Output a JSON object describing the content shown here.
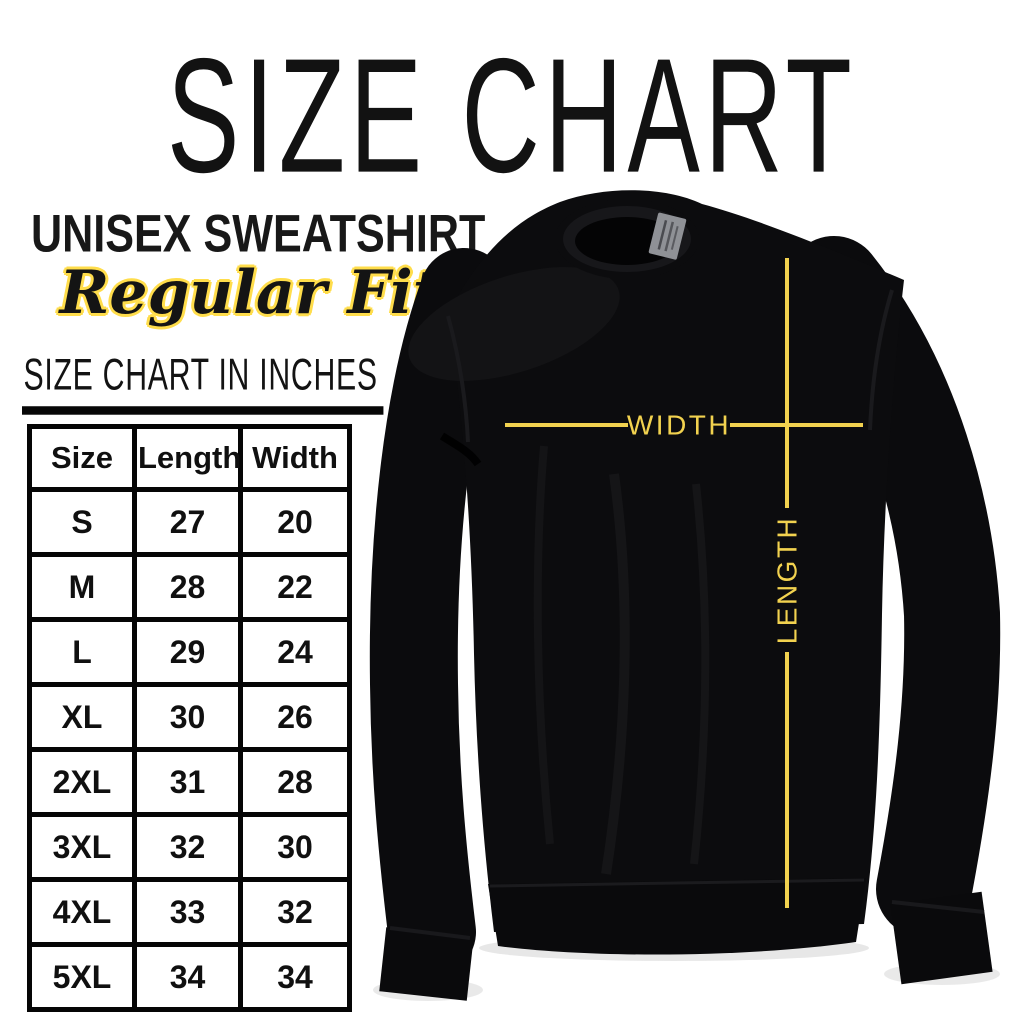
{
  "page": {
    "title": "SIZE CHART",
    "product_name": "UNISEX SWEATSHIRT",
    "fit": "Regular Fit",
    "table_heading": "SIZE CHART IN INCHES"
  },
  "chart_data": {
    "type": "table",
    "title": "SIZE CHART IN INCHES",
    "units": "inches",
    "columns": [
      "Size",
      "Length",
      "Width"
    ],
    "rows": [
      [
        "S",
        "27",
        "20"
      ],
      [
        "M",
        "28",
        "22"
      ],
      [
        "L",
        "29",
        "24"
      ],
      [
        "XL",
        "30",
        "26"
      ],
      [
        "2XL",
        "31",
        "28"
      ],
      [
        "3XL",
        "32",
        "30"
      ],
      [
        "4XL",
        "33",
        "32"
      ],
      [
        "5XL",
        "34",
        "34"
      ]
    ]
  },
  "diagram": {
    "width_label": "WIDTH",
    "length_label": "LENGTH"
  },
  "colors": {
    "accent_yellow": "#F2D24F",
    "script_outline_yellow": "#FFDD4B",
    "text_black": "#111111",
    "garment_black": "#0B0B0D",
    "background": "#FFFFFF"
  }
}
